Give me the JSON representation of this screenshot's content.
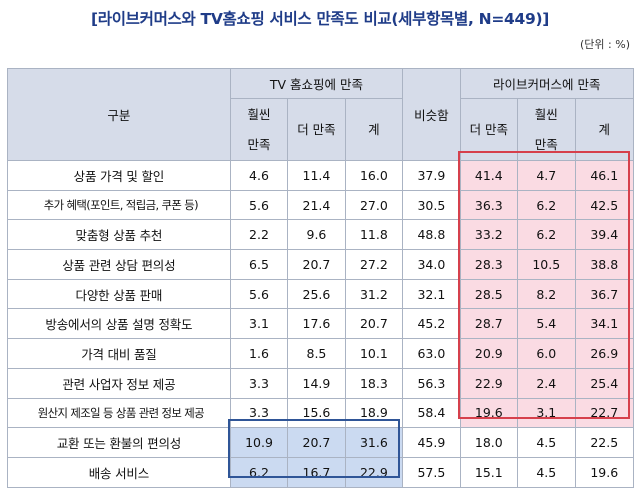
{
  "title": "[라이브커머스와 TV홈쇼핑 서비스 만족도 비교(세부항목별, N=449)]",
  "unit": "(단위 : %)",
  "header": {
    "category": "구분",
    "tv_group": "TV 홈쇼핑에 만족",
    "similar": "비슷함",
    "live_group": "라이브커머스에 만족",
    "tv_sub": [
      "훨씬",
      "만족",
      "더 만족",
      "계"
    ],
    "live_sub": [
      "더 만족",
      "훨씬",
      "만족",
      "계"
    ]
  },
  "rows": [
    {
      "label": "상품 가격 및 할인",
      "v": [
        "4.6",
        "11.4",
        "16.0",
        "37.9",
        "41.4",
        "4.7",
        "46.1"
      ]
    },
    {
      "label": "추가 혜택(포인트, 적립금, 쿠폰 등)",
      "v": [
        "5.6",
        "21.4",
        "27.0",
        "30.5",
        "36.3",
        "6.2",
        "42.5"
      ]
    },
    {
      "label": "맞춤형 상품 추천",
      "v": [
        "2.2",
        "9.6",
        "11.8",
        "48.8",
        "33.2",
        "6.2",
        "39.4"
      ]
    },
    {
      "label": "상품 관련 상담 편의성",
      "v": [
        "6.5",
        "20.7",
        "27.2",
        "34.0",
        "28.3",
        "10.5",
        "38.8"
      ]
    },
    {
      "label": "다양한 상품 판매",
      "v": [
        "5.6",
        "25.6",
        "31.2",
        "32.1",
        "28.5",
        "8.2",
        "36.7"
      ]
    },
    {
      "label": "방송에서의 상품 설명 정확도",
      "v": [
        "3.1",
        "17.6",
        "20.7",
        "45.2",
        "28.7",
        "5.4",
        "34.1"
      ]
    },
    {
      "label": "가격 대비 품질",
      "v": [
        "1.6",
        "8.5",
        "10.1",
        "63.0",
        "20.9",
        "6.0",
        "26.9"
      ]
    },
    {
      "label": "관련 사업자 정보 제공",
      "v": [
        "3.3",
        "14.9",
        "18.3",
        "56.3",
        "22.9",
        "2.4",
        "25.4"
      ]
    },
    {
      "label": "원산지 제조일 등 상품 관련 정보 제공",
      "v": [
        "3.3",
        "15.6",
        "18.9",
        "58.4",
        "19.6",
        "3.1",
        "22.7"
      ]
    },
    {
      "label": "교환 또는 환불의 편의성",
      "v": [
        "10.9",
        "20.7",
        "31.6",
        "45.9",
        "18.0",
        "4.5",
        "22.5"
      ]
    },
    {
      "label": "배송 서비스",
      "v": [
        "6.2",
        "16.7",
        "22.9",
        "57.5",
        "15.1",
        "4.5",
        "19.6"
      ]
    }
  ]
}
